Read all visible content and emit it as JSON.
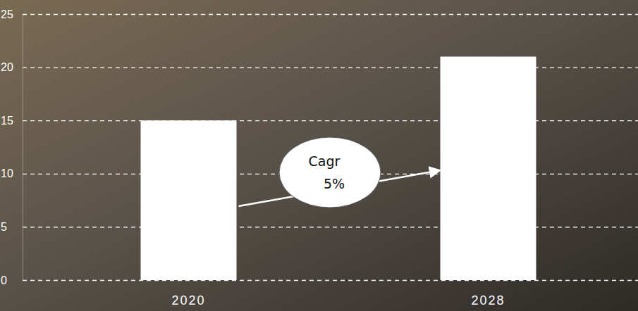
{
  "chart_data": {
    "type": "bar",
    "categories": [
      "2020",
      "2028"
    ],
    "values": [
      15,
      21
    ],
    "color": "#ffffff",
    "ylim": [
      0,
      25
    ],
    "yticks": [
      0,
      5,
      10,
      15,
      20,
      25
    ],
    "grid": true,
    "annotations": [
      "Cagr",
      "5%"
    ]
  }
}
